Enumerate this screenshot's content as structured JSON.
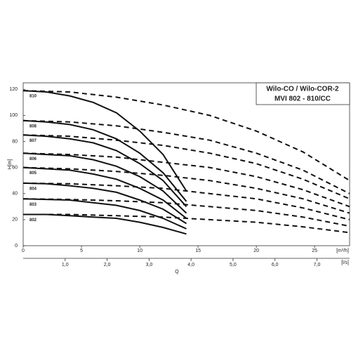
{
  "chart_data": {
    "type": "line",
    "title": [
      "Wilo-CO / Wilo-COR-2",
      "MVI 802 - 810/CC"
    ],
    "y_label": "H[m]",
    "x_label": "Q",
    "x_unit": "[m³/h]",
    "x2_unit": "[l/s]",
    "xlim": [
      0,
      28
    ],
    "xticks": [
      0,
      5,
      10,
      15,
      20,
      25
    ],
    "x2lim": [
      0,
      7.7778
    ],
    "x2ticks": [
      {
        "value": 1,
        "label": "1,0"
      },
      {
        "value": 2,
        "label": "2,0"
      },
      {
        "value": 3,
        "label": "3,0"
      },
      {
        "value": 4,
        "label": "4,0"
      },
      {
        "value": 5,
        "label": "5,0"
      },
      {
        "value": 6,
        "label": "6,0"
      },
      {
        "value": 7,
        "label": "7,0"
      }
    ],
    "ylim": [
      0,
      125
    ],
    "yticks": [
      0,
      20,
      40,
      60,
      80,
      100,
      120
    ],
    "color": "#111111",
    "series": [
      {
        "name": "810",
        "line": "solid",
        "x": [
          0,
          2,
          4,
          6,
          8,
          10,
          12,
          14
        ],
        "values": [
          119,
          118,
          115,
          110,
          102,
          88,
          70,
          42
        ]
      },
      {
        "name": "808",
        "line": "solid",
        "x": [
          0,
          2,
          4,
          6,
          8,
          10,
          12,
          14
        ],
        "values": [
          96,
          95,
          93,
          89,
          82,
          71,
          56,
          34
        ]
      },
      {
        "name": "807",
        "line": "solid",
        "x": [
          0,
          2,
          4,
          6,
          8,
          10,
          12,
          14
        ],
        "values": [
          85,
          84,
          82,
          79,
          73,
          63,
          50,
          30
        ]
      },
      {
        "name": "806",
        "line": "solid",
        "x": [
          0,
          2,
          4,
          6,
          8,
          10,
          12,
          14
        ],
        "values": [
          71,
          70,
          69,
          66,
          61,
          53,
          42,
          25
        ]
      },
      {
        "name": "805",
        "line": "solid",
        "x": [
          0,
          2,
          4,
          6,
          8,
          10,
          12,
          14
        ],
        "values": [
          60,
          59,
          58,
          55,
          51,
          44,
          35,
          21
        ]
      },
      {
        "name": "804",
        "line": "solid",
        "x": [
          0,
          2,
          4,
          6,
          8,
          10,
          12,
          14
        ],
        "values": [
          48,
          47.5,
          46,
          44,
          41,
          35,
          28,
          17
        ]
      },
      {
        "name": "803",
        "line": "solid",
        "x": [
          0,
          2,
          4,
          6,
          8,
          10,
          12,
          14
        ],
        "values": [
          36,
          35.5,
          35,
          33,
          31,
          27,
          21,
          13
        ]
      },
      {
        "name": "802",
        "line": "solid",
        "x": [
          0,
          2,
          4,
          6,
          8,
          10,
          12,
          14
        ],
        "values": [
          24,
          24,
          23,
          22,
          21,
          18,
          14,
          9
        ]
      },
      {
        "line": "dashed",
        "x": [
          0,
          4,
          8,
          12,
          16,
          20,
          24,
          28
        ],
        "values": [
          119,
          118,
          114,
          108,
          100,
          88,
          72,
          50
        ]
      },
      {
        "line": "dashed",
        "x": [
          0,
          4,
          8,
          12,
          16,
          20,
          24,
          28
        ],
        "values": [
          96,
          95,
          92,
          87,
          81,
          71,
          58,
          40
        ]
      },
      {
        "line": "dashed",
        "x": [
          0,
          4,
          8,
          12,
          16,
          20,
          24,
          28
        ],
        "values": [
          85,
          84,
          81,
          77,
          71,
          63,
          51,
          36
        ]
      },
      {
        "line": "dashed",
        "x": [
          0,
          4,
          8,
          12,
          16,
          20,
          24,
          28
        ],
        "values": [
          71,
          70,
          68,
          64,
          60,
          53,
          43,
          30
        ]
      },
      {
        "line": "dashed",
        "x": [
          0,
          4,
          8,
          12,
          16,
          20,
          24,
          28
        ],
        "values": [
          60,
          59,
          57,
          54,
          50,
          44,
          36,
          25
        ]
      },
      {
        "line": "dashed",
        "x": [
          0,
          4,
          8,
          12,
          16,
          20,
          24,
          28
        ],
        "values": [
          48,
          47.5,
          46,
          44,
          40,
          36,
          29,
          20
        ]
      },
      {
        "line": "dashed",
        "x": [
          0,
          4,
          8,
          12,
          16,
          20,
          24,
          28
        ],
        "values": [
          36,
          35.5,
          34.5,
          33,
          30,
          27,
          22,
          15
        ]
      },
      {
        "line": "dashed",
        "x": [
          0,
          4,
          8,
          12,
          16,
          20,
          24,
          28
        ],
        "values": [
          24,
          24,
          23,
          22,
          20,
          18,
          14.5,
          10
        ]
      }
    ]
  }
}
